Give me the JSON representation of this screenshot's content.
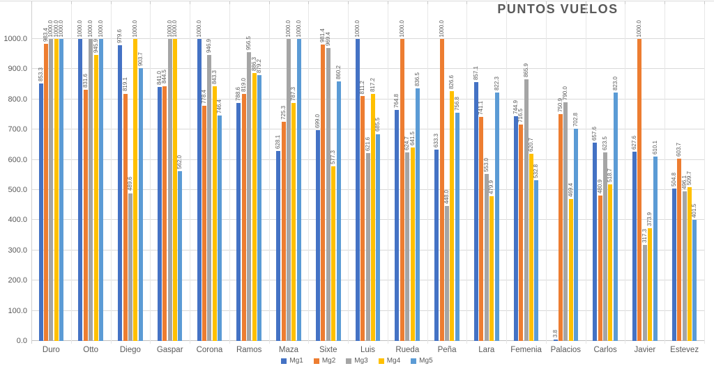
{
  "title": "PUNTOS VUELOS",
  "chart_data": {
    "type": "bar",
    "title": "PUNTOS VUELOS",
    "categories": [
      "Duro",
      "Otto",
      "Diego",
      "Gaspar",
      "Corona",
      "Ramos",
      "Maza",
      "Sixte",
      "Luis",
      "Rueda",
      "Peña",
      "Lara",
      "Femenia",
      "Palacios",
      "Carlos",
      "Javier",
      "Estevez"
    ],
    "series": [
      {
        "name": "Mg1",
        "color": "#4472C4",
        "values": [
          853.3,
          1000.0,
          979.6,
          841.0,
          1000.0,
          788.6,
          628.1,
          699.0,
          1000.0,
          764.8,
          633.3,
          857.1,
          744.9,
          3.8,
          657.6,
          627.6,
          504.8
        ]
      },
      {
        "name": "Mg2",
        "color": "#ED7D31",
        "values": [
          983.4,
          831.6,
          819.1,
          844.5,
          778.4,
          819.0,
          725.3,
          981.4,
          811.2,
          1000.0,
          1000.0,
          741.1,
          716.5,
          750.9,
          480.9,
          1000.0,
          603.7
        ]
      },
      {
        "name": "Mg3",
        "color": "#A5A5A5",
        "values": [
          1000.0,
          1000.0,
          489.6,
          1000.0,
          946.9,
          956.5,
          1000.0,
          969.4,
          621.6,
          624.7,
          448.0,
          553.0,
          865.9,
          790.0,
          623.5,
          317.3,
          496.1
        ]
      },
      {
        "name": "Mg4",
        "color": "#FFC000",
        "values": [
          1000.0,
          945.9,
          1000.0,
          1000.0,
          843.3,
          886.3,
          787.3,
          577.3,
          817.2,
          641.5,
          826.6,
          479.9,
          620.7,
          469.4,
          518.7,
          373.9,
          509.7
        ]
      },
      {
        "name": "Mg5",
        "color": "#5B9BD5",
        "values": [
          1000.0,
          1000.0,
          903.7,
          562.0,
          746.4,
          879.2,
          1000.0,
          860.2,
          685.5,
          836.5,
          756.8,
          822.3,
          532.8,
          702.8,
          823.0,
          610.1,
          401.5
        ]
      }
    ],
    "ylim": [
      0,
      1000
    ],
    "ytick_step": 100,
    "ytick_labels": [
      "0.0",
      "100.0",
      "200.0",
      "300.0",
      "400.0",
      "500.0",
      "600.0",
      "700.0",
      "800.0",
      "900.0",
      "1000.0"
    ],
    "grid": true,
    "legend_position": "bottom",
    "data_labels": "each bar labeled with its value to one decimal, rotated vertical"
  },
  "colors": {
    "axis_text": "#595959",
    "title_text": "#595959",
    "gridline": "#D9D9D9"
  }
}
